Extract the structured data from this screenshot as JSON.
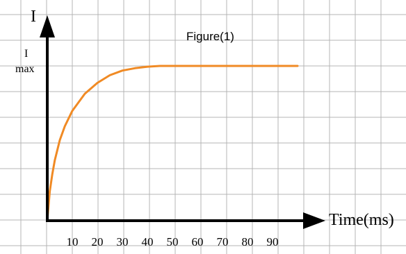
{
  "chart_data": {
    "type": "line",
    "title": "Figure(1)",
    "xlabel": "Time(ms)",
    "ylabel": "I",
    "y_marker_label_top": "I",
    "y_marker_label_bottom": "max",
    "x_ticks": [
      "10",
      "20",
      "30",
      "40",
      "50",
      "60",
      "70",
      "80",
      "90"
    ],
    "xlim": [
      0,
      110
    ],
    "ylim": [
      0,
      1.25
    ],
    "grid": true,
    "series": [
      {
        "x": [
          0,
          1,
          2,
          3,
          5,
          7,
          10,
          15,
          20,
          25,
          30,
          35,
          40,
          45,
          50,
          55,
          60,
          70,
          80,
          90,
          100
        ],
        "values": [
          0,
          0.19,
          0.3,
          0.39,
          0.52,
          0.61,
          0.71,
          0.82,
          0.89,
          0.94,
          0.97,
          0.985,
          0.995,
          1.0,
          1.0,
          1.0,
          1.0,
          1.0,
          1.0,
          1.0,
          1.0
        ]
      }
    ],
    "colors": {
      "curve": "#f08a24",
      "axes": "#000000",
      "grid": "#b4b4b4"
    }
  }
}
